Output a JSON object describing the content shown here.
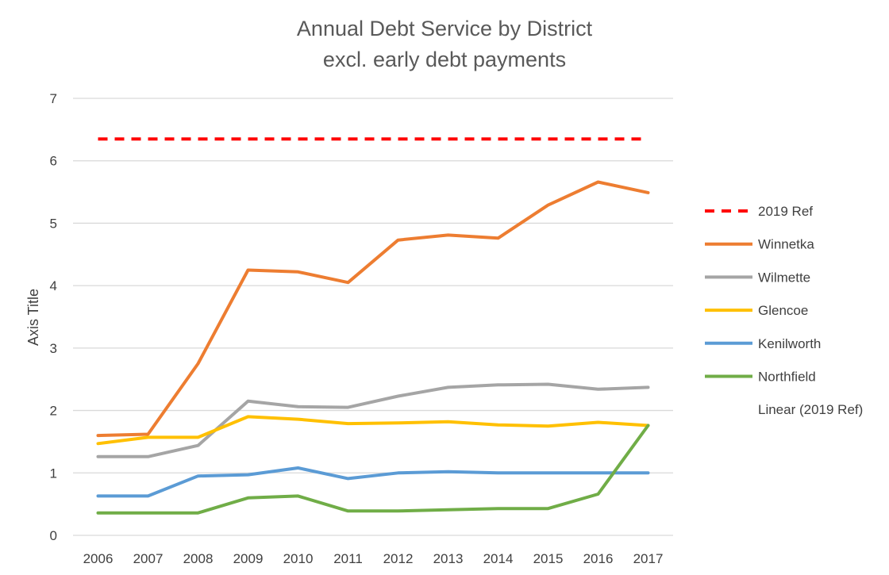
{
  "chart_data": {
    "type": "line",
    "title": "Annual Debt Service by District",
    "subtitle": "excl. early debt payments",
    "xlabel": "",
    "ylabel": "Axis Title",
    "ylim": [
      0,
      7
    ],
    "y_ticks": [
      0,
      1,
      2,
      3,
      4,
      5,
      6,
      7
    ],
    "grid": "horizontal",
    "legend_position": "right",
    "categories": [
      "2006",
      "2007",
      "2008",
      "2009",
      "2010",
      "2011",
      "2012",
      "2013",
      "2014",
      "2015",
      "2016",
      "2017"
    ],
    "series": [
      {
        "name": "2019 Ref",
        "color": "#ff0000",
        "style": "dashed",
        "values": [
          6.35,
          6.35,
          6.35,
          6.35,
          6.35,
          6.35,
          6.35,
          6.35,
          6.35,
          6.35,
          6.35,
          6.35
        ]
      },
      {
        "name": "Winnetka",
        "color": "#ed7d31",
        "style": "solid",
        "values": [
          1.6,
          1.62,
          2.75,
          4.25,
          4.22,
          4.05,
          4.73,
          4.81,
          4.76,
          5.29,
          5.66,
          5.49
        ]
      },
      {
        "name": "Wilmette",
        "color": "#a5a5a5",
        "style": "solid",
        "values": [
          1.26,
          1.26,
          1.44,
          2.15,
          2.06,
          2.05,
          2.23,
          2.37,
          2.41,
          2.42,
          2.34,
          2.37
        ]
      },
      {
        "name": "Glencoe",
        "color": "#ffc000",
        "style": "solid",
        "values": [
          1.47,
          1.57,
          1.57,
          1.9,
          1.86,
          1.79,
          1.8,
          1.82,
          1.77,
          1.75,
          1.81,
          1.76
        ]
      },
      {
        "name": "Kenilworth",
        "color": "#5b9bd5",
        "style": "solid",
        "values": [
          0.63,
          0.63,
          0.95,
          0.97,
          1.08,
          0.91,
          1.0,
          1.02,
          1.0,
          1.0,
          1.0,
          1.0
        ]
      },
      {
        "name": "Northfield",
        "color": "#70ad47",
        "style": "solid",
        "values": [
          0.36,
          0.36,
          0.36,
          0.6,
          0.63,
          0.39,
          0.39,
          0.41,
          0.43,
          0.43,
          0.66,
          1.76
        ]
      }
    ],
    "extra_legend_entries": [
      "Linear (2019 Ref)"
    ]
  }
}
